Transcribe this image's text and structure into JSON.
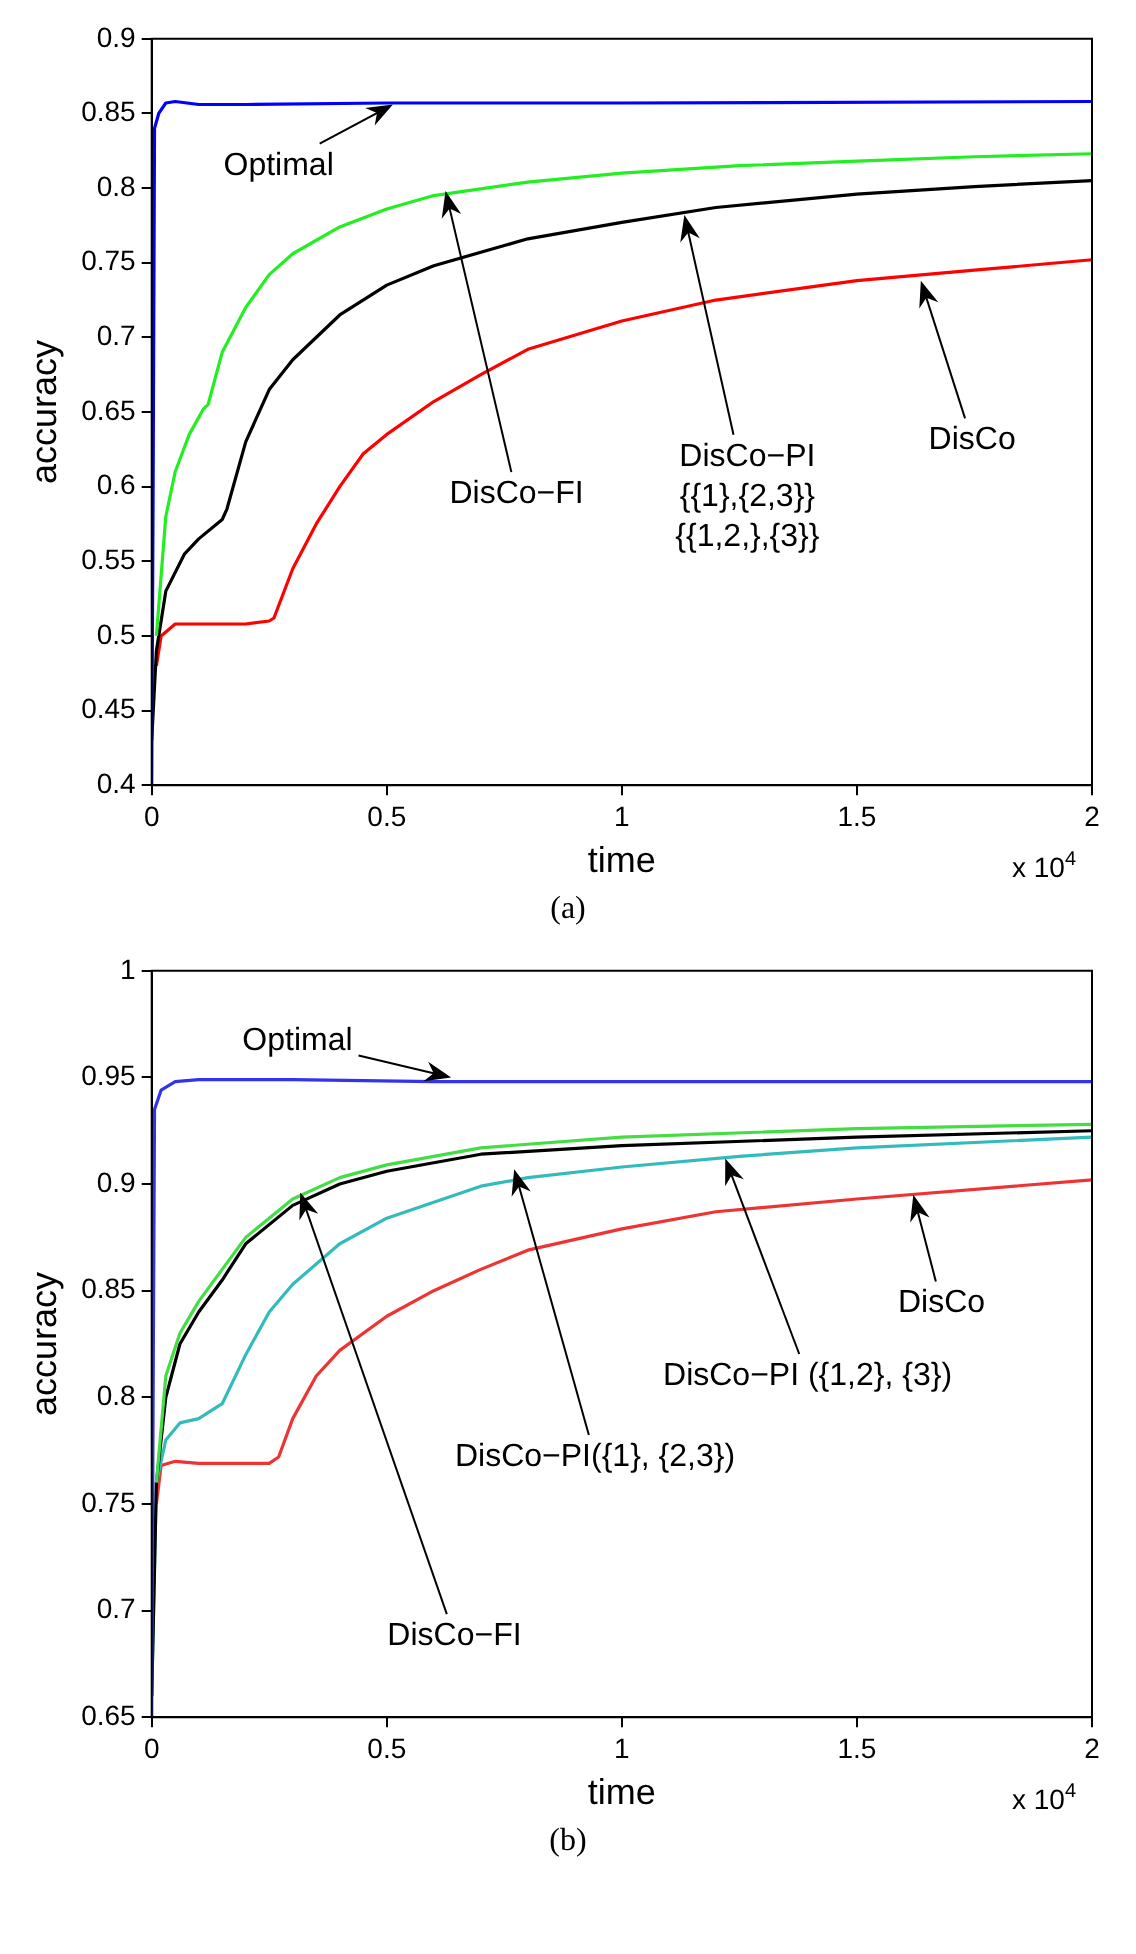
{
  "chart_data": [
    {
      "type": "line",
      "xlabel": "time",
      "ylabel": "accuracy",
      "xlim": [
        0,
        2
      ],
      "xticks": [
        0,
        0.5,
        1,
        1.5,
        2
      ],
      "ylim": [
        0.4,
        0.9
      ],
      "yticks": [
        0.4,
        0.45,
        0.5,
        0.55,
        0.6,
        0.65,
        0.7,
        0.75,
        0.8,
        0.85,
        0.9
      ],
      "grid": false,
      "legend": false,
      "marker": "none",
      "line_style": "solid",
      "series": [
        {
          "color": "#0000ff",
          "x": [
            0,
            0.003,
            0.006,
            0.015,
            0.03,
            0.05,
            0.1,
            0.2,
            0.5,
            1,
            2
          ],
          "values": [
            0.4,
            0.6,
            0.84,
            0.85,
            0.857,
            0.858,
            0.856,
            0.856,
            0.857,
            0.857,
            0.858
          ]
        },
        {
          "color": "#22ee22",
          "x": [
            0.01,
            0.03,
            0.05,
            0.08,
            0.11,
            0.12,
            0.15,
            0.2,
            0.25,
            0.3,
            0.4,
            0.5,
            0.6,
            0.8,
            1,
            1.25,
            1.5,
            1.75,
            2
          ],
          "values": [
            0.5,
            0.58,
            0.61,
            0.635,
            0.652,
            0.655,
            0.69,
            0.72,
            0.742,
            0.756,
            0.774,
            0.786,
            0.795,
            0.804,
            0.81,
            0.815,
            0.818,
            0.821,
            0.823
          ]
        },
        {
          "color": "#000000",
          "x": [
            0,
            0.01,
            0.03,
            0.07,
            0.1,
            0.15,
            0.16,
            0.2,
            0.25,
            0.3,
            0.4,
            0.5,
            0.6,
            0.8,
            1,
            1.2,
            1.5,
            1.75,
            2
          ],
          "values": [
            0.43,
            0.49,
            0.53,
            0.555,
            0.565,
            0.578,
            0.585,
            0.63,
            0.665,
            0.685,
            0.715,
            0.735,
            0.748,
            0.766,
            0.777,
            0.787,
            0.796,
            0.801,
            0.805
          ]
        },
        {
          "color": "#ff0000",
          "x": [
            0.01,
            0.02,
            0.05,
            0.1,
            0.2,
            0.25,
            0.26,
            0.3,
            0.35,
            0.4,
            0.45,
            0.5,
            0.6,
            0.7,
            0.8,
            1,
            1.2,
            1.5,
            1.75,
            2
          ],
          "values": [
            0.48,
            0.5,
            0.508,
            0.508,
            0.508,
            0.51,
            0.512,
            0.545,
            0.575,
            0.6,
            0.622,
            0.635,
            0.657,
            0.675,
            0.692,
            0.711,
            0.725,
            0.738,
            0.745,
            0.752
          ]
        }
      ],
      "annotations": [
        {
          "text": "Optimal",
          "x": 0.513,
          "y": 0.856
        },
        {
          "text": "DisCo−FI",
          "x": 0.625,
          "y": 0.798
        },
        {
          "text": "DisCo−PI\n{{1},{2,3}}\n{{1,2,},{3}}",
          "x": 1.133,
          "y": 0.782
        },
        {
          "text": "DisCo",
          "x": 1.636,
          "y": 0.738
        },
        "x 10$^{4}$",
        "(a)"
      ]
    },
    {
      "type": "line",
      "xlabel": "time",
      "ylabel": "accuracy",
      "xlim": [
        0,
        2
      ],
      "xticks": [
        0,
        0.5,
        1,
        1.5,
        2
      ],
      "ylim": [
        0.65,
        1
      ],
      "yticks": [
        0.65,
        0.7,
        0.75,
        0.8,
        0.85,
        0.9,
        0.95,
        1
      ],
      "grid": false,
      "legend": false,
      "marker": "none",
      "line_style": "solid",
      "series": [
        {
          "color": "#3333ee",
          "x": [
            0,
            0.003,
            0.006,
            0.02,
            0.05,
            0.1,
            0.3,
            0.6,
            1,
            2
          ],
          "values": [
            0.65,
            0.8,
            0.935,
            0.944,
            0.948,
            0.949,
            0.949,
            0.948,
            0.948,
            0.948
          ]
        },
        {
          "color": "#44dd44",
          "x": [
            0.01,
            0.03,
            0.06,
            0.1,
            0.15,
            0.2,
            0.3,
            0.4,
            0.5,
            0.7,
            1,
            1.5,
            2
          ],
          "values": [
            0.76,
            0.81,
            0.83,
            0.845,
            0.86,
            0.875,
            0.893,
            0.903,
            0.909,
            0.917,
            0.922,
            0.926,
            0.928
          ]
        },
        {
          "color": "#000000",
          "x": [
            0,
            0.01,
            0.03,
            0.06,
            0.1,
            0.15,
            0.2,
            0.3,
            0.4,
            0.5,
            0.7,
            1,
            1.5,
            2
          ],
          "values": [
            0.66,
            0.76,
            0.8,
            0.825,
            0.84,
            0.855,
            0.872,
            0.89,
            0.9,
            0.906,
            0.914,
            0.918,
            0.922,
            0.925
          ]
        },
        {
          "color": "#33bbbb",
          "x": [
            0,
            0.01,
            0.03,
            0.06,
            0.1,
            0.15,
            0.2,
            0.25,
            0.3,
            0.4,
            0.5,
            0.7,
            0.8,
            1,
            1.25,
            1.5,
            2
          ],
          "values": [
            0.66,
            0.76,
            0.78,
            0.788,
            0.79,
            0.797,
            0.82,
            0.84,
            0.853,
            0.872,
            0.884,
            0.899,
            0.903,
            0.908,
            0.913,
            0.917,
            0.922
          ]
        },
        {
          "color": "#ee3333",
          "x": [
            0.01,
            0.02,
            0.05,
            0.1,
            0.2,
            0.25,
            0.27,
            0.3,
            0.35,
            0.4,
            0.5,
            0.6,
            0.7,
            0.8,
            1,
            1.2,
            1.5,
            2
          ],
          "values": [
            0.75,
            0.768,
            0.77,
            0.769,
            0.769,
            0.769,
            0.772,
            0.79,
            0.81,
            0.822,
            0.838,
            0.85,
            0.86,
            0.869,
            0.879,
            0.887,
            0.893,
            0.902
          ]
        }
      ],
      "annotations": [
        {
          "text": "Optimal",
          "x": 0.637,
          "y": 0.95
        },
        {
          "text": "DisCo−FI",
          "x": 0.316,
          "y": 0.896
        },
        {
          "text": "DisCo−PI({1}, {2,3})",
          "x": 0.771,
          "y": 0.907
        },
        {
          "text": "DisCo−PI ({1,2}, {3})",
          "x": 1.22,
          "y": 0.912
        },
        {
          "text": "DisCo",
          "x": 1.62,
          "y": 0.895
        },
        "x 10$^{4}$",
        "(b)"
      ]
    }
  ]
}
